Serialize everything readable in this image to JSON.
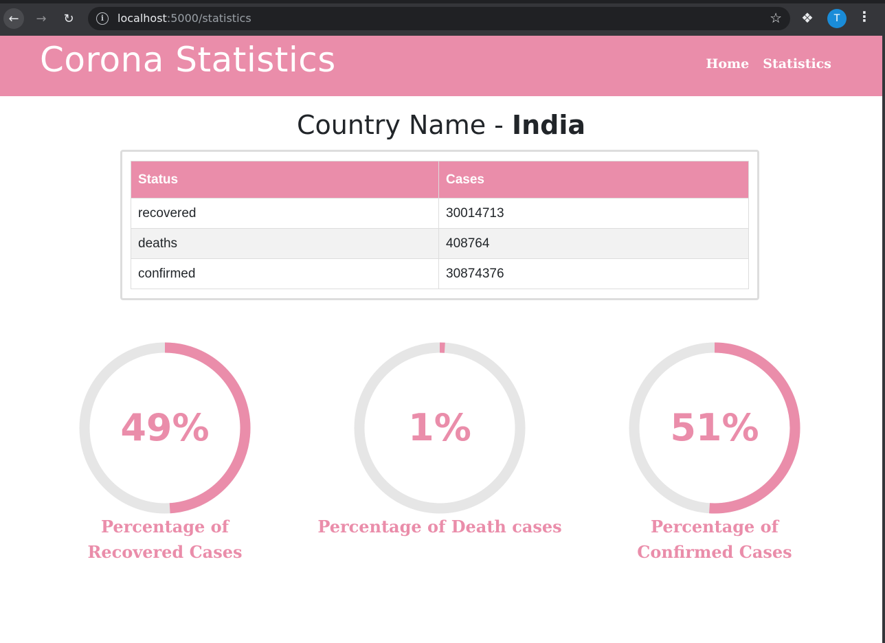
{
  "browser": {
    "url_host": "localhost",
    "url_path": ":5000/statistics",
    "avatar_initial": "T"
  },
  "header": {
    "brand": "Corona Statistics",
    "nav": [
      "Home",
      "Statistics"
    ]
  },
  "title": {
    "prefix": "Country Name - ",
    "country": "India"
  },
  "table": {
    "headers": [
      "Status",
      "Cases"
    ],
    "rows": [
      {
        "status": "recovered",
        "cases": "30014713"
      },
      {
        "status": "deaths",
        "cases": "408764"
      },
      {
        "status": "confirmed",
        "cases": "30874376"
      }
    ]
  },
  "progress": [
    {
      "value": 49,
      "text": "49%",
      "label": "Percentage of Recovered Cases"
    },
    {
      "value": 1,
      "text": "1%",
      "label": "Percentage of Death cases"
    },
    {
      "value": 51,
      "text": "51%",
      "label": "Percentage of Confirmed Cases"
    }
  ],
  "colors": {
    "accent": "#ea8daa",
    "track": "#e6e6e6"
  }
}
